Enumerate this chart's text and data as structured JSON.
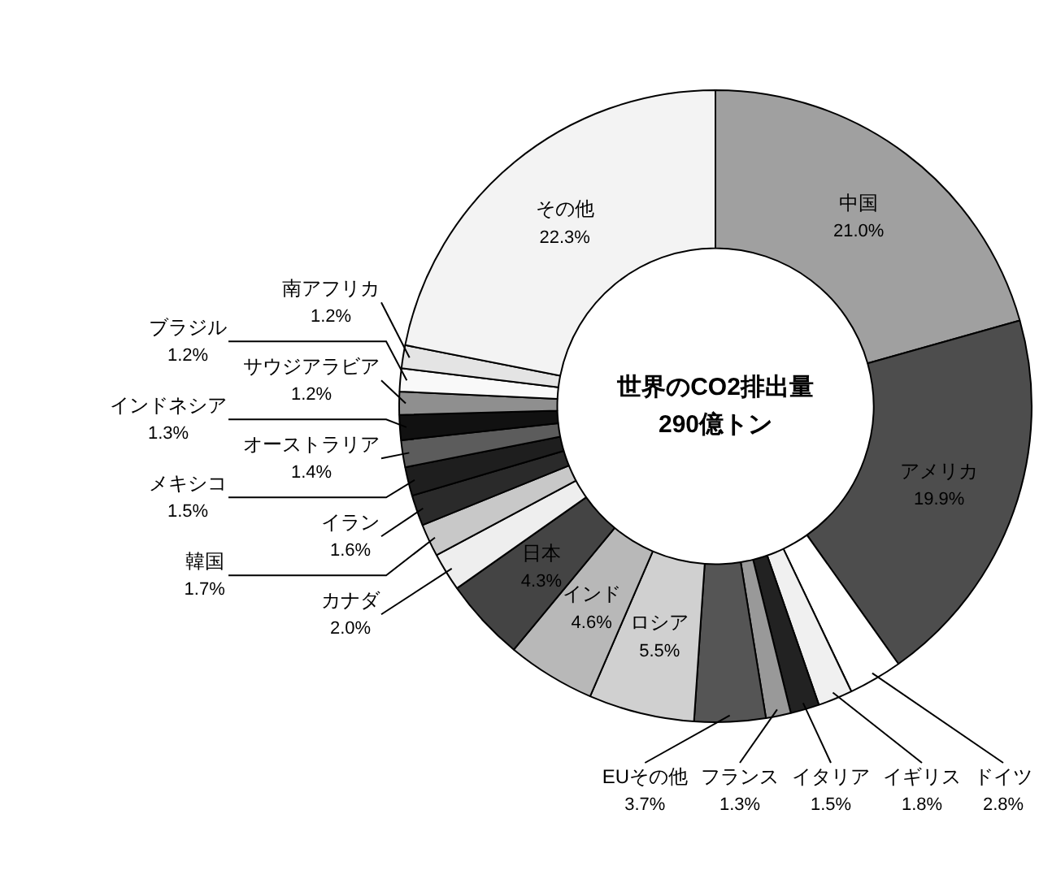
{
  "chart_data": {
    "type": "donut",
    "title": "世界のCO2排出量",
    "subtitle": "290億トン",
    "categories": [
      "中国",
      "アメリカ",
      "ドイツ",
      "イギリス",
      "イタリア",
      "フランス",
      "EUその他",
      "ロシア",
      "インド",
      "日本",
      "カナダ",
      "韓国",
      "イラン",
      "メキシコ",
      "オーストラリア",
      "インドネシア",
      "サウジアラビア",
      "ブラジル",
      "南アフリカ",
      "その他"
    ],
    "values": [
      21.0,
      19.9,
      2.8,
      1.8,
      1.5,
      1.3,
      3.7,
      5.5,
      4.6,
      4.3,
      2.0,
      1.7,
      1.6,
      1.5,
      1.4,
      1.3,
      1.2,
      1.2,
      1.2,
      22.3
    ],
    "colors": [
      "#a0a0a0",
      "#4d4d4d",
      "#ffffff",
      "#f0f0f0",
      "#222222",
      "#999999",
      "#555555",
      "#d0d0d0",
      "#b8b8b8",
      "#444444",
      "#eeeeee",
      "#c8c8c8",
      "#2a2a2a",
      "#1e1e1e",
      "#5c5c5c",
      "#111111",
      "#8f8f8f",
      "#f9f9f9",
      "#e4e4e4",
      "#f3f3f3"
    ],
    "value_labels": [
      "21.0%",
      "19.9%",
      "2.8%",
      "1.8%",
      "1.5%",
      "1.3%",
      "3.7%",
      "5.5%",
      "4.6%",
      "4.3%",
      "2.0%",
      "1.7%",
      "1.6%",
      "1.5%",
      "1.4%",
      "1.3%",
      "1.2%",
      "1.2%",
      "1.2%",
      "22.3%"
    ],
    "legend": false
  }
}
